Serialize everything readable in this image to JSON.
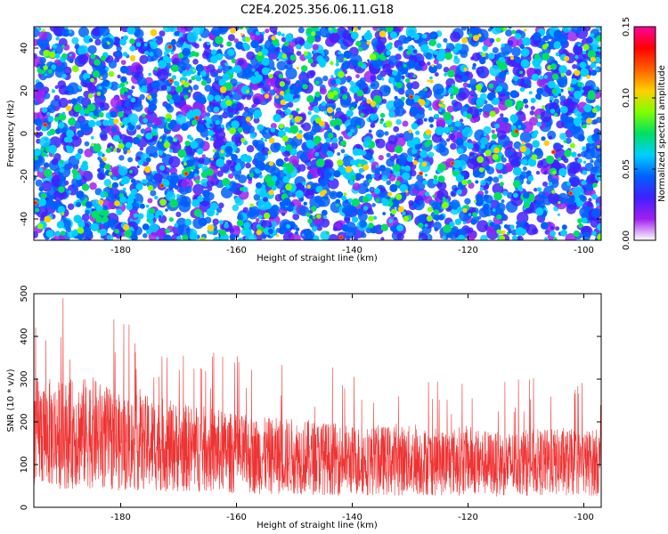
{
  "title": "C2E4.2025.356.06.11.G18",
  "chart_data": [
    {
      "type": "heatmap",
      "xlabel": "Height of straight line (km)",
      "ylabel": "Frequency (Hz)",
      "xlim": [
        -195,
        -97
      ],
      "ylim": [
        -50,
        50
      ],
      "xticks": [
        -180,
        -160,
        -140,
        -120,
        -100
      ],
      "yticks": [
        -40,
        -20,
        0,
        20,
        40
      ],
      "xtick_labels": [
        "-180",
        "-160",
        "-140",
        "-120",
        "-100"
      ],
      "ytick_labels": [
        "-40",
        "-20",
        "0",
        "20",
        "40"
      ],
      "colorbar": {
        "label": "Normalized spectral amplitude",
        "range": [
          0,
          0.15
        ],
        "ticks": [
          0,
          0.05,
          0.1,
          0.15
        ],
        "tick_labels": [
          "0.00",
          "0.05",
          "0.10",
          "0.15"
        ],
        "colors": [
          "#ffffff",
          "#a020f0",
          "#4020ff",
          "#0060ff",
          "#00d0ff",
          "#00e060",
          "#80ff00",
          "#ffd000",
          "#ff6000",
          "#ff0000",
          "#ff00a0"
        ]
      },
      "grid": false
    },
    {
      "type": "line",
      "xlabel": "Height of straight line (km)",
      "ylabel": "SNR (10 * v/v)",
      "xlim": [
        -195,
        -97
      ],
      "ylim": [
        0,
        500
      ],
      "xticks": [
        -180,
        -160,
        -140,
        -120,
        -100
      ],
      "yticks": [
        0,
        100,
        200,
        300,
        400,
        500
      ],
      "xtick_labels": [
        "-180",
        "-160",
        "-140",
        "-120",
        "-100"
      ],
      "ytick_labels": [
        "0",
        "100",
        "200",
        "300",
        "400",
        "500"
      ],
      "series": [
        {
          "color": "#ee3333",
          "x": [
            -195,
            -190,
            -185,
            -180,
            -175,
            -170,
            -165,
            -160,
            -155,
            -150,
            -145,
            -140,
            -135,
            -130,
            -125,
            -120,
            -115,
            -110,
            -105,
            -100,
            -97
          ],
          "values": [
            175,
            170,
            175,
            150,
            150,
            140,
            135,
            125,
            120,
            120,
            115,
            110,
            110,
            110,
            105,
            110,
            100,
            105,
            105,
            105,
            105
          ]
        }
      ],
      "grid": false
    }
  ]
}
